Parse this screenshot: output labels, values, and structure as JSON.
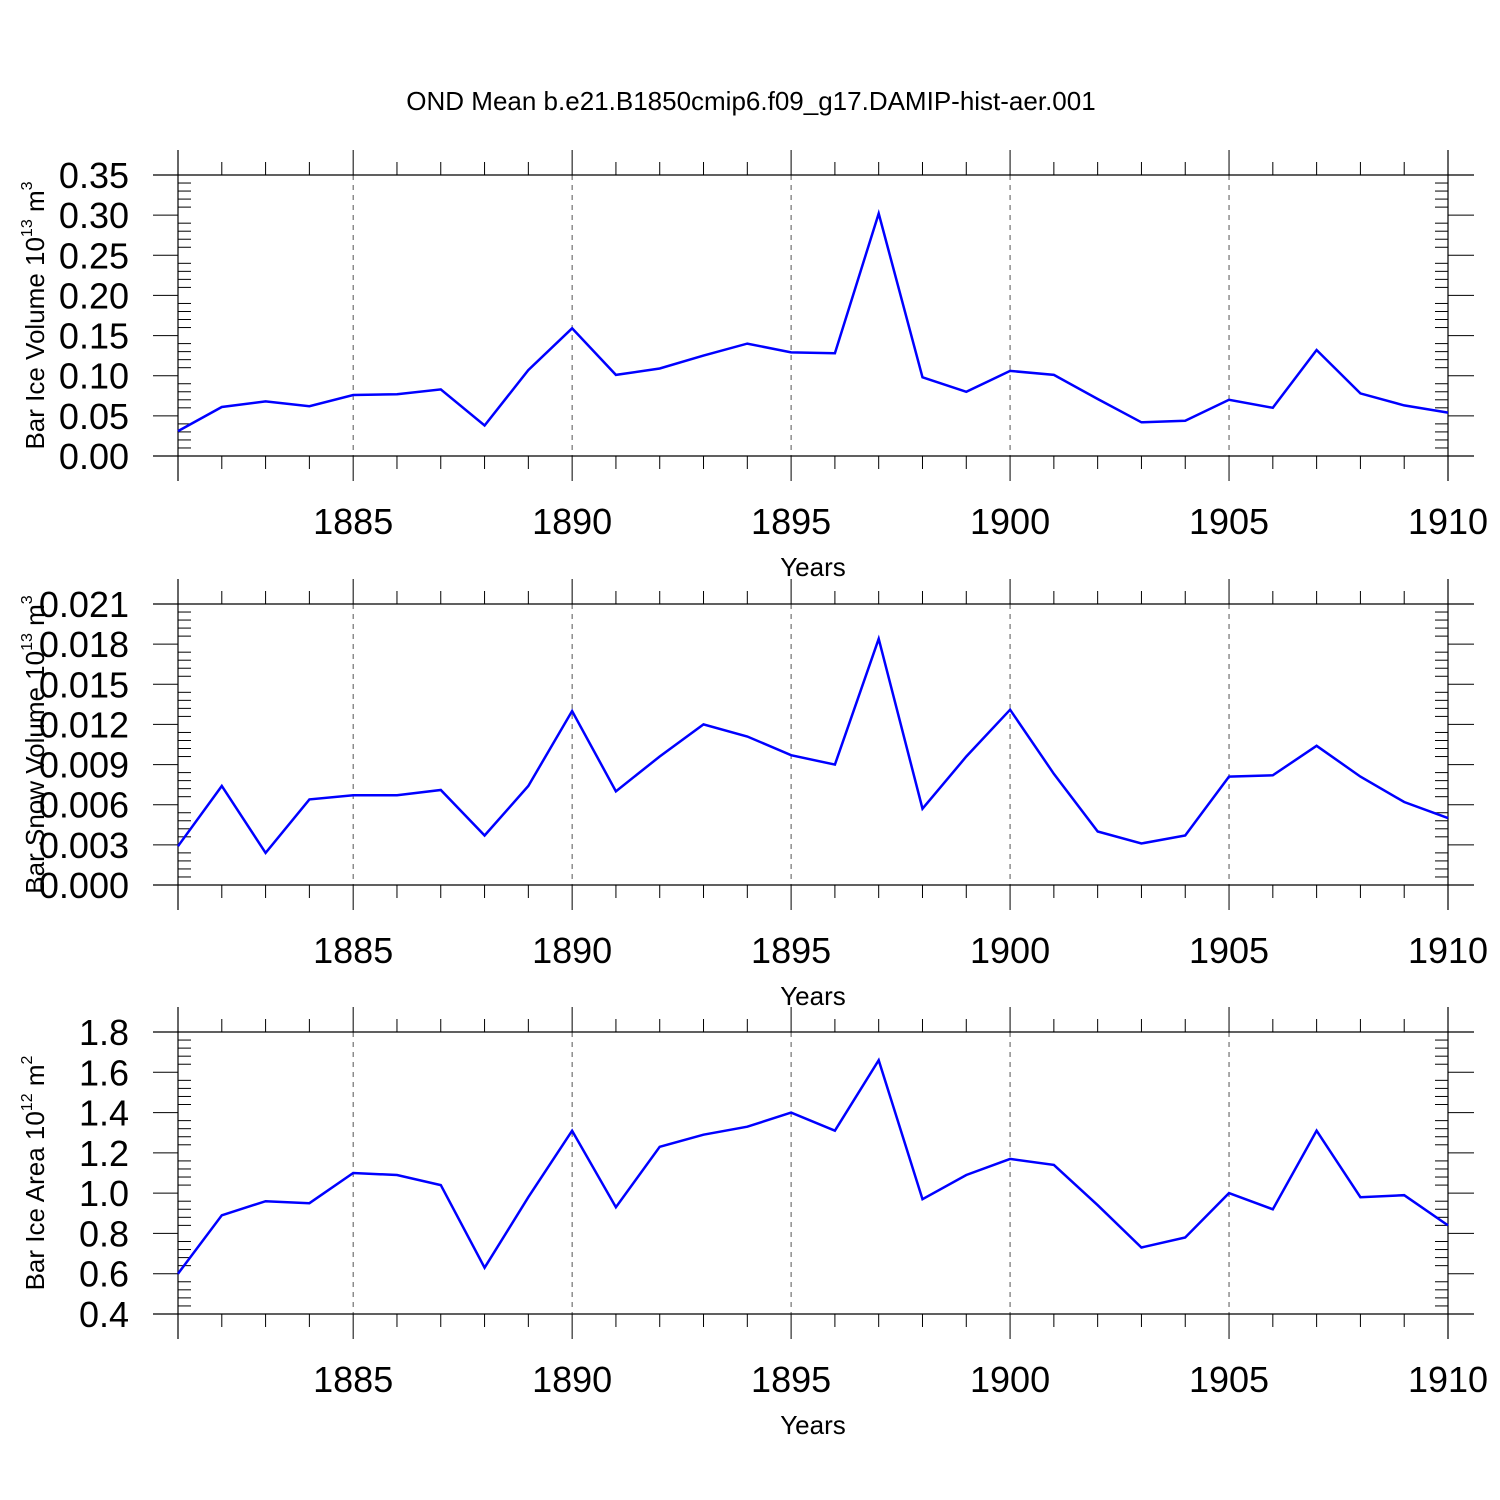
{
  "title": "OND Mean b.e21.B1850cmip6.f09_g17.DAMIP-hist-aer.001",
  "colors": {
    "line": "#0000ff",
    "axis": "#000000",
    "grid": "#555555"
  },
  "chart_data": [
    {
      "type": "line",
      "xlabel": "Years",
      "ylabel_parts": [
        "Bar Ice Volume 10",
        "13",
        " m",
        "3"
      ],
      "xlim": [
        1881,
        1910
      ],
      "ylim": [
        0.0,
        0.35
      ],
      "xticks": [
        "1885",
        "1890",
        "1895",
        "1900",
        "1905",
        "1910"
      ],
      "yticks": [
        "0.00",
        "0.05",
        "0.10",
        "0.15",
        "0.20",
        "0.25",
        "0.30",
        "0.35"
      ],
      "grid": "vertical dashed at major x ticks",
      "x": [
        1881,
        1882,
        1883,
        1884,
        1885,
        1886,
        1887,
        1888,
        1889,
        1890,
        1891,
        1892,
        1893,
        1894,
        1895,
        1896,
        1897,
        1898,
        1899,
        1900,
        1901,
        1902,
        1903,
        1904,
        1905,
        1906,
        1907,
        1908,
        1909,
        1910
      ],
      "values": [
        0.031,
        0.061,
        0.068,
        0.062,
        0.076,
        0.077,
        0.083,
        0.038,
        0.107,
        0.159,
        0.101,
        0.109,
        0.125,
        0.14,
        0.129,
        0.128,
        0.302,
        0.098,
        0.08,
        0.106,
        0.101,
        0.071,
        0.042,
        0.044,
        0.07,
        0.06,
        0.132,
        0.078,
        0.063,
        0.054
      ]
    },
    {
      "type": "line",
      "xlabel": "Years",
      "ylabel_parts": [
        "Bar Snow Volume 10",
        "13",
        " m",
        "3"
      ],
      "xlim": [
        1881,
        1910
      ],
      "ylim": [
        0.0,
        0.021
      ],
      "xticks": [
        "1885",
        "1890",
        "1895",
        "1900",
        "1905",
        "1910"
      ],
      "yticks": [
        "0.000",
        "0.003",
        "0.006",
        "0.009",
        "0.012",
        "0.015",
        "0.018",
        "0.021"
      ],
      "grid": "vertical dashed at major x ticks",
      "x": [
        1881,
        1882,
        1883,
        1884,
        1885,
        1886,
        1887,
        1888,
        1889,
        1890,
        1891,
        1892,
        1893,
        1894,
        1895,
        1896,
        1897,
        1898,
        1899,
        1900,
        1901,
        1902,
        1903,
        1904,
        1905,
        1906,
        1907,
        1908,
        1909,
        1910
      ],
      "values": [
        0.0029,
        0.0074,
        0.0024,
        0.0064,
        0.0067,
        0.0067,
        0.0071,
        0.0037,
        0.0074,
        0.013,
        0.007,
        0.0096,
        0.012,
        0.0111,
        0.0097,
        0.009,
        0.0184,
        0.0057,
        0.0096,
        0.0131,
        0.0083,
        0.004,
        0.0031,
        0.0037,
        0.0081,
        0.0082,
        0.0104,
        0.0081,
        0.0062,
        0.005
      ]
    },
    {
      "type": "line",
      "xlabel": "Years",
      "ylabel_parts": [
        "Bar Ice Area 10",
        "12",
        " m",
        "2"
      ],
      "xlim": [
        1881,
        1910
      ],
      "ylim": [
        0.4,
        1.8
      ],
      "xticks": [
        "1885",
        "1890",
        "1895",
        "1900",
        "1905",
        "1910"
      ],
      "yticks": [
        "0.4",
        "0.6",
        "0.8",
        "1.0",
        "1.2",
        "1.4",
        "1.6",
        "1.8"
      ],
      "grid": "vertical dashed at major x ticks",
      "x": [
        1881,
        1882,
        1883,
        1884,
        1885,
        1886,
        1887,
        1888,
        1889,
        1890,
        1891,
        1892,
        1893,
        1894,
        1895,
        1896,
        1897,
        1898,
        1899,
        1900,
        1901,
        1902,
        1903,
        1904,
        1905,
        1906,
        1907,
        1908,
        1909,
        1910
      ],
      "values": [
        0.6,
        0.89,
        0.96,
        0.95,
        1.1,
        1.09,
        1.04,
        0.63,
        0.98,
        1.31,
        0.93,
        1.23,
        1.29,
        1.33,
        1.4,
        1.31,
        1.66,
        0.97,
        1.09,
        1.17,
        1.14,
        0.94,
        0.73,
        0.78,
        1.0,
        0.92,
        1.31,
        0.98,
        0.99,
        0.84
      ]
    }
  ]
}
